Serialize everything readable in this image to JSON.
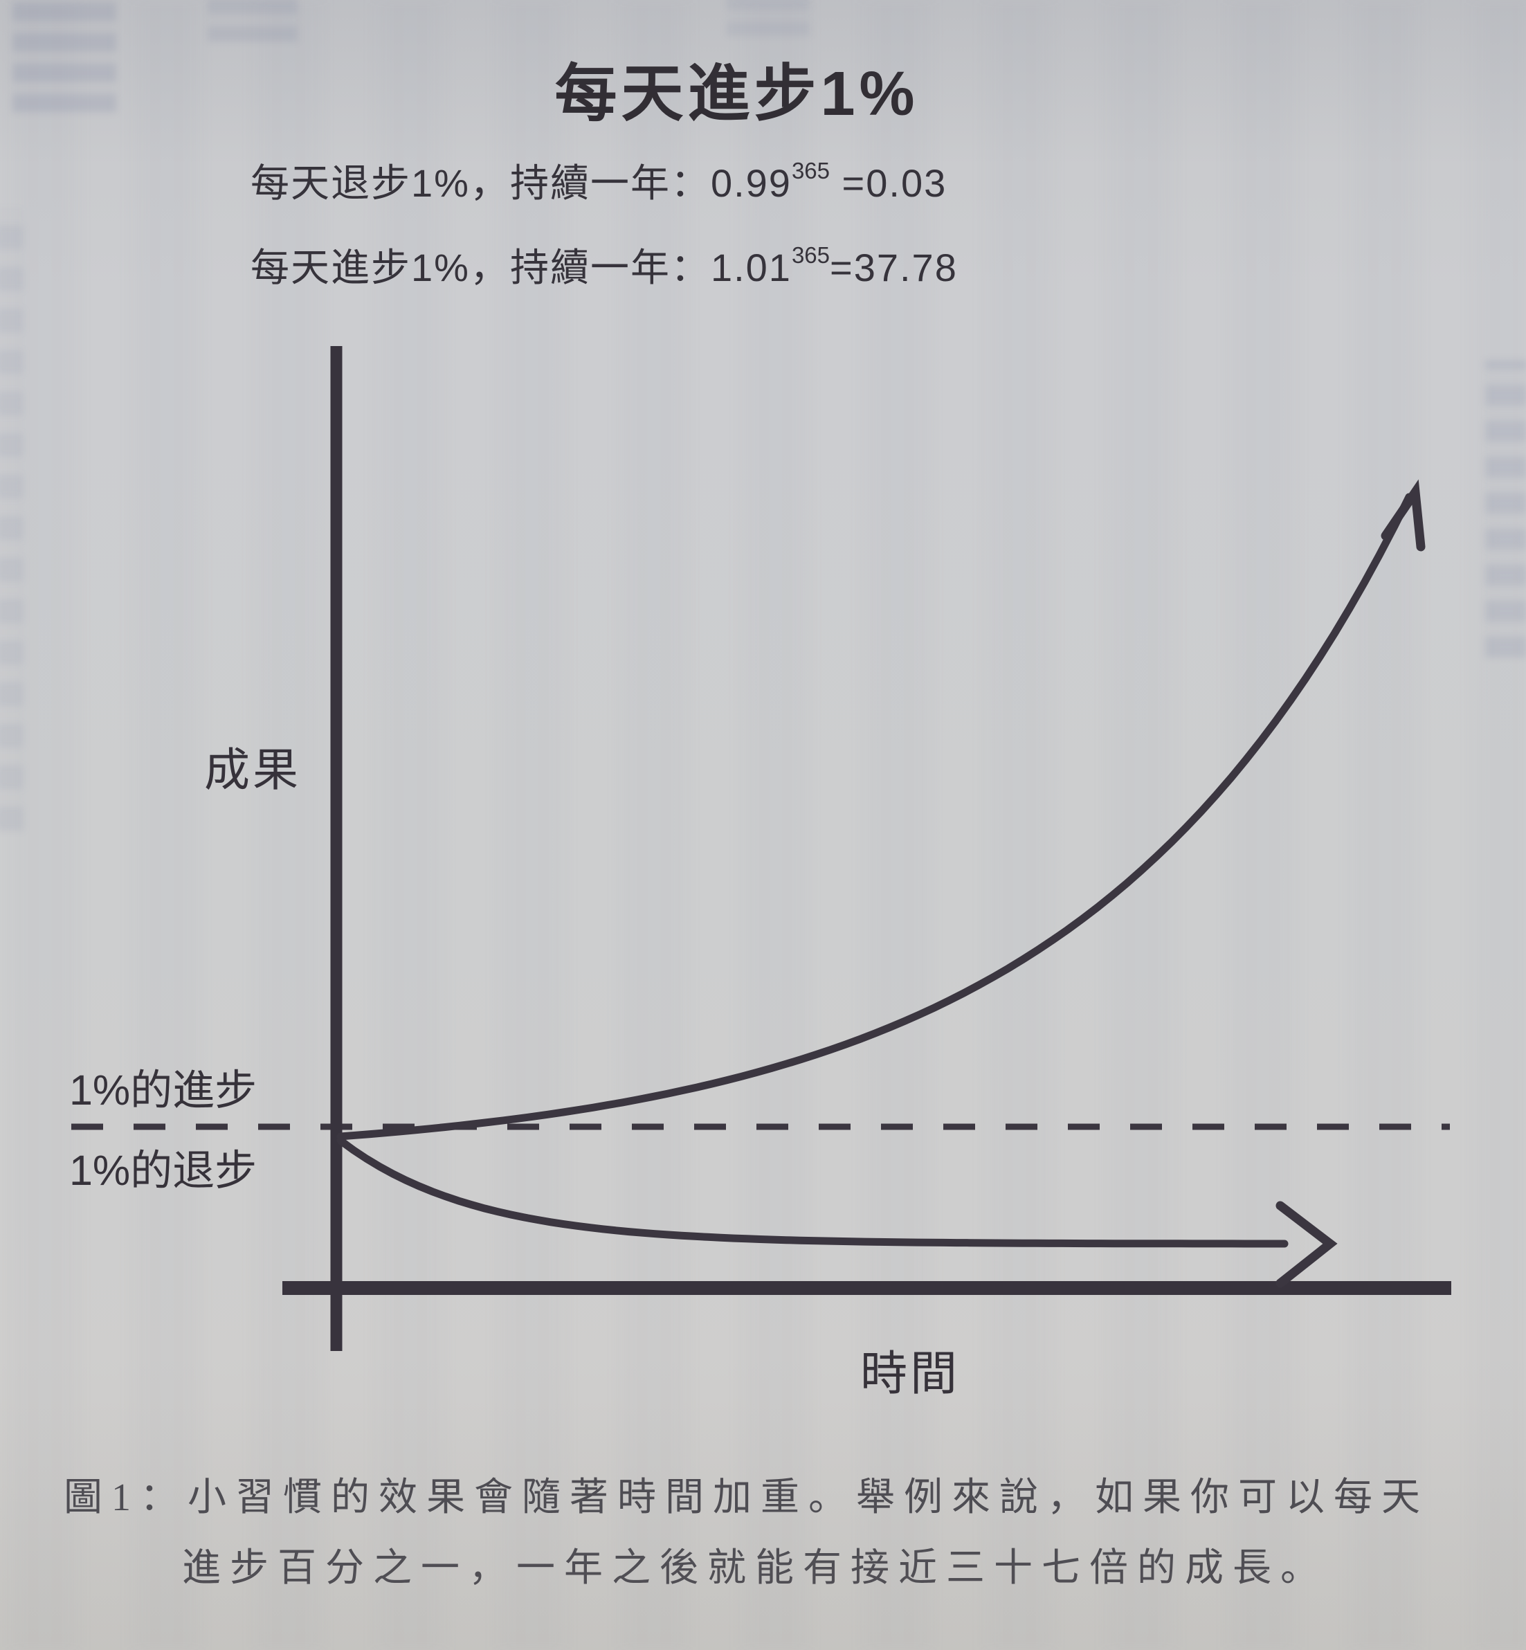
{
  "page": {
    "title": "每天進步1%",
    "formulas": [
      {
        "prefix": "每天退步1%，持續一年：",
        "base": "0.99",
        "exponent": "365",
        "result": " =0.03"
      },
      {
        "prefix": "每天進步1%，持續一年：",
        "base": "1.01",
        "exponent": "365",
        "result": "=37.78"
      }
    ],
    "caption_line1": "圖1：小習慣的效果會隨著時間加重。舉例來說，如果你可以每天",
    "caption_line2": "進步百分之一，一年之後就能有接近三十七倍的成長。"
  },
  "chart": {
    "y_axis_label": "成果",
    "x_axis_label": "時間",
    "upper_curve_label": "1%的進步",
    "lower_curve_label": "1%的退步"
  },
  "chart_data": {
    "type": "line",
    "title": "每天進步1%",
    "xlabel": "時間",
    "ylabel": "成果",
    "x_range_days": [
      0,
      365
    ],
    "baseline_value": 1.0,
    "grid": false,
    "reference_line": {
      "style": "dashed",
      "value": 1.0,
      "label_above": "1%的進步",
      "label_below": "1%的退步"
    },
    "series": [
      {
        "name": "1%的進步",
        "formula": "1.01^x",
        "start_value": 1.0,
        "end_value": 37.78,
        "trend": "exponential-growth"
      },
      {
        "name": "1%的退步",
        "formula": "0.99^x",
        "start_value": 1.0,
        "end_value": 0.03,
        "trend": "exponential-decay"
      }
    ],
    "annotations": [
      "0.99^365 = 0.03",
      "1.01^365 = 37.78"
    ]
  },
  "colors": {
    "paper": "#cbccce",
    "ink": "#3b3640",
    "title_ink": "#2f2b31",
    "caption_ink": "#4b4a51"
  }
}
